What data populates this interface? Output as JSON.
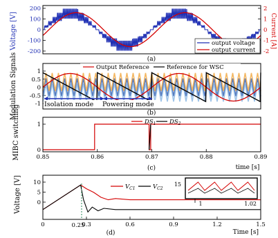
{
  "chart_data": [
    {
      "type": "line",
      "panel": "(a)",
      "ylabel": "Voltage [V]",
      "ylabel_right": "Current [A]",
      "yticks": [
        "200",
        "100",
        "0",
        "-100",
        "-200"
      ],
      "yticks_right": [
        "2",
        "1",
        "0",
        "-1",
        "-2"
      ],
      "ylim": [
        -200,
        200
      ],
      "ylim_right": [
        -2,
        2
      ],
      "series": [
        {
          "name": "output voltage",
          "color": "#1f2fb4",
          "kind": "staircase-sine",
          "amplitude": 150,
          "cycles": 2
        },
        {
          "name": "output current",
          "color": "#d40000",
          "kind": "sine",
          "amplitude": 1.5,
          "cycles": 2,
          "phase_lag_deg": 20
        }
      ],
      "legend_position": "bottom-right",
      "grid": false
    },
    {
      "type": "line",
      "panel": "(b)",
      "ylabel": "Modulation Signals",
      "yticks": [
        "1",
        "0.5",
        "0",
        "-0.5",
        "-1"
      ],
      "ylim": [
        -1,
        1
      ],
      "series": [
        {
          "name": "Output Reference",
          "color": "#d40000"
        },
        {
          "name": "Reference for WSC",
          "color": "#000000"
        }
      ],
      "carrier_colors": [
        "#1f4ea8",
        "#f0a030",
        "#7fb0e0"
      ],
      "annotations": [
        "Isolation mode",
        "Powering mode"
      ],
      "legend_position": "top",
      "grid": false
    },
    {
      "type": "line",
      "panel": "(c)",
      "ylabel": "MIBC switching",
      "yticks": [
        "1",
        "0"
      ],
      "ylim": [
        0,
        1
      ],
      "xlabel": "time [s]",
      "xticks": [
        "0.85",
        "0.86",
        "0.87",
        "0.88",
        "0.89"
      ],
      "xlim": [
        0.85,
        0.89
      ],
      "series": [
        {
          "name": "DS_1",
          "color": "#d40000",
          "x": [
            0.85,
            0.8595,
            0.8595,
            0.8695,
            0.8695,
            0.8698,
            0.8698,
            0.8795,
            0.8795,
            0.89
          ],
          "y": [
            0,
            0,
            1,
            1,
            0,
            0,
            1,
            1,
            1,
            1
          ]
        },
        {
          "name": "DS_2",
          "color": "#000000",
          "x": [
            0.8695,
            0.8698
          ],
          "y": [
            0,
            1
          ]
        }
      ],
      "legend_position": "top",
      "grid": false
    },
    {
      "type": "line",
      "panel": "(d)",
      "ylabel": "Voltage [V]",
      "yticks": [
        "10",
        "5",
        "0"
      ],
      "ylim": [
        -4,
        14
      ],
      "xlabel": "Time [s]",
      "xticks": [
        "0",
        "0.3",
        "0.6",
        "0.9",
        "1.2",
        "1.5"
      ],
      "xlim": [
        0,
        1.5
      ],
      "extra_tick": "0.25",
      "series": [
        {
          "name": "V_C1",
          "color": "#d40000",
          "x": [
            0,
            0.26,
            0.3,
            0.35,
            0.4,
            0.45,
            0.5,
            0.6,
            0.9,
            1.2,
            1.5
          ],
          "y": [
            0,
            10,
            8.5,
            7,
            5,
            4,
            4.5,
            4,
            4,
            4,
            4
          ]
        },
        {
          "name": "V_C2",
          "color": "#000000",
          "x": [
            0,
            0.26,
            0.28,
            0.31,
            0.34,
            0.38,
            0.42,
            0.5,
            0.6,
            0.9,
            1.2,
            1.5
          ],
          "y": [
            0,
            10,
            4,
            -1,
            1,
            -0.5,
            0.5,
            0,
            0,
            0,
            0,
            0
          ]
        }
      ],
      "inset": {
        "ytick": "15",
        "xtick": "1",
        "xtick_end": "1.02",
        "series_colors": [
          "#d40000",
          "#000000"
        ]
      },
      "legend_position": "top-right",
      "grid": false
    }
  ],
  "panels": {
    "a": {
      "label": "(a)",
      "legend": [
        "output voltage",
        "output current"
      ]
    },
    "b": {
      "label": "(b)",
      "legend_1": "Output Reference",
      "legend_2": "Reference for WSC",
      "iso": "Isolation mode",
      "pow": "Powering mode"
    },
    "c": {
      "label": "(c)",
      "leg1_main": "DS",
      "leg1_sub": "1",
      "leg2_main": "DS",
      "leg2_sub": "2",
      "xlabel": "time [s]"
    },
    "d": {
      "label": "(d)",
      "leg1_main": "V",
      "leg1_sub": "C1",
      "leg2_main": "V",
      "leg2_sub": "C2",
      "xlabel": "Time [s]",
      "extra_tick": "0.25"
    }
  }
}
